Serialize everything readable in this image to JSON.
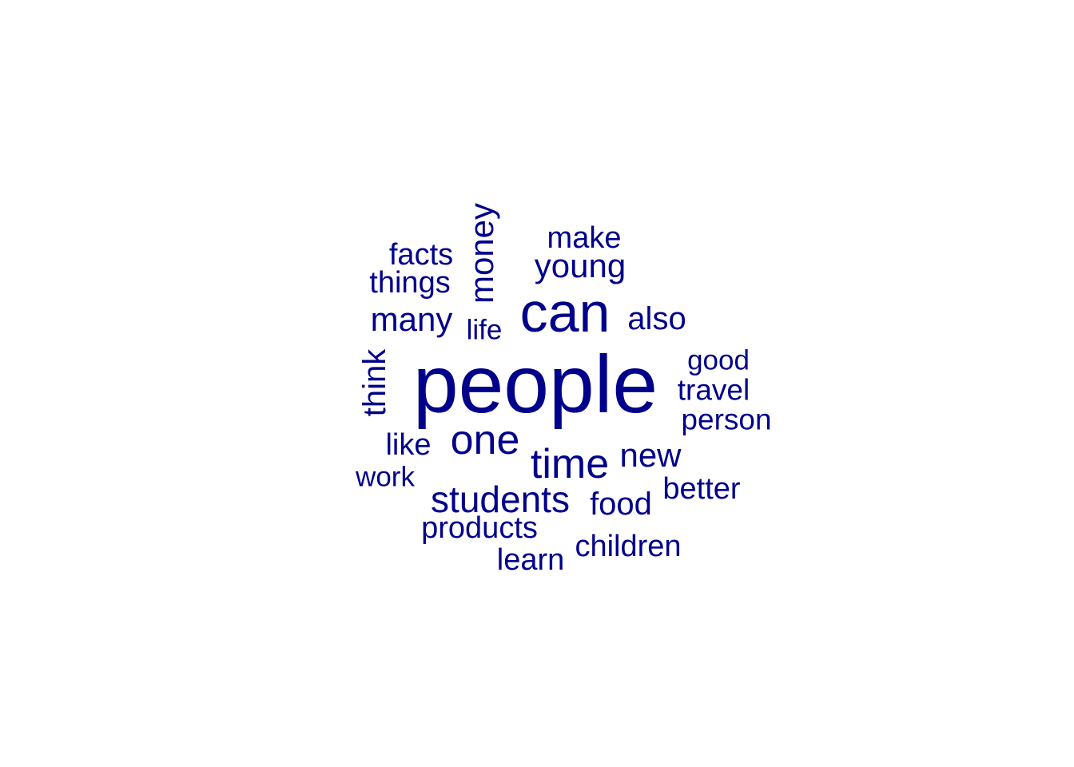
{
  "wordcloud": {
    "color": "#00008B",
    "words": [
      {
        "text": "people",
        "rotated": false
      },
      {
        "text": "can",
        "rotated": false
      },
      {
        "text": "money",
        "rotated": true
      },
      {
        "text": "make",
        "rotated": false
      },
      {
        "text": "young",
        "rotated": false
      },
      {
        "text": "facts",
        "rotated": false
      },
      {
        "text": "things",
        "rotated": false
      },
      {
        "text": "many",
        "rotated": false
      },
      {
        "text": "life",
        "rotated": false
      },
      {
        "text": "also",
        "rotated": false
      },
      {
        "text": "good",
        "rotated": false
      },
      {
        "text": "think",
        "rotated": true
      },
      {
        "text": "travel",
        "rotated": false
      },
      {
        "text": "person",
        "rotated": false
      },
      {
        "text": "one",
        "rotated": false
      },
      {
        "text": "like",
        "rotated": false
      },
      {
        "text": "time",
        "rotated": false
      },
      {
        "text": "new",
        "rotated": false
      },
      {
        "text": "work",
        "rotated": false
      },
      {
        "text": "students",
        "rotated": false
      },
      {
        "text": "food",
        "rotated": false
      },
      {
        "text": "better",
        "rotated": false
      },
      {
        "text": "products",
        "rotated": false
      },
      {
        "text": "children",
        "rotated": false
      },
      {
        "text": "learn",
        "rotated": false
      }
    ]
  }
}
